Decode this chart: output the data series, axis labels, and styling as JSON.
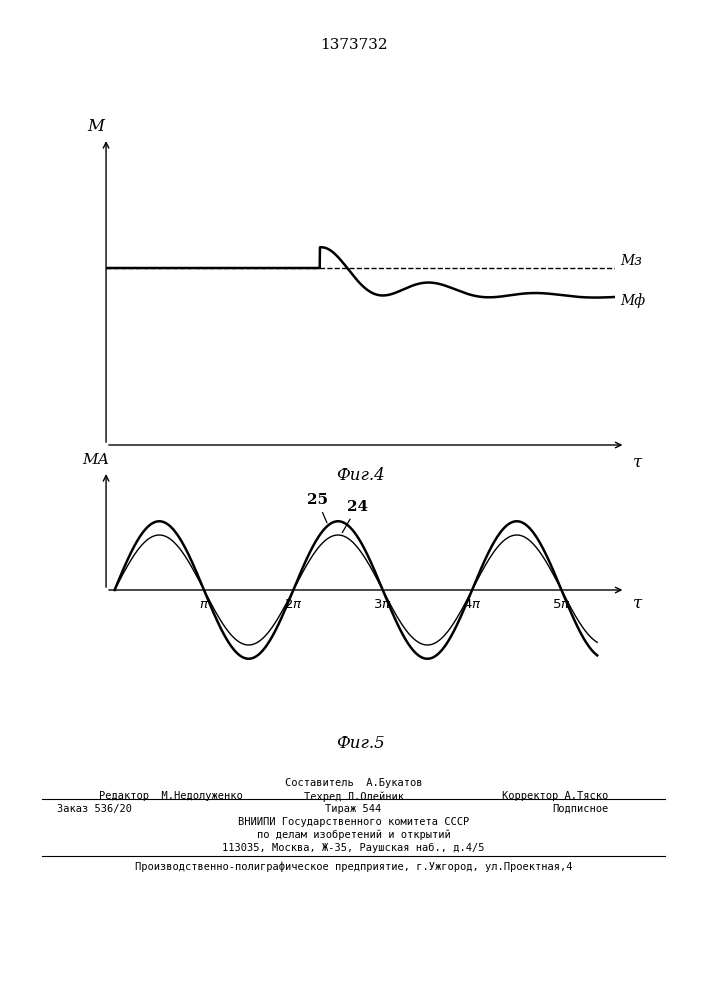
{
  "title": "1373732",
  "fig4_label": "Фиг.4",
  "fig5_label": "Фиг.5",
  "fig4_ylabel": "M",
  "fig4_xlabel": "τ",
  "fig5_ylabel": "MА",
  "fig5_xlabel": "τ",
  "Mz_label": "Mз",
  "Mf_label": "Mф",
  "curve25_label": "25",
  "curve24_label": "24",
  "background_color": "#ffffff",
  "line_color": "#000000",
  "Mz_level": 0.6,
  "Mf_settle": 0.5,
  "amp25": 1.0,
  "amp24": 0.8
}
